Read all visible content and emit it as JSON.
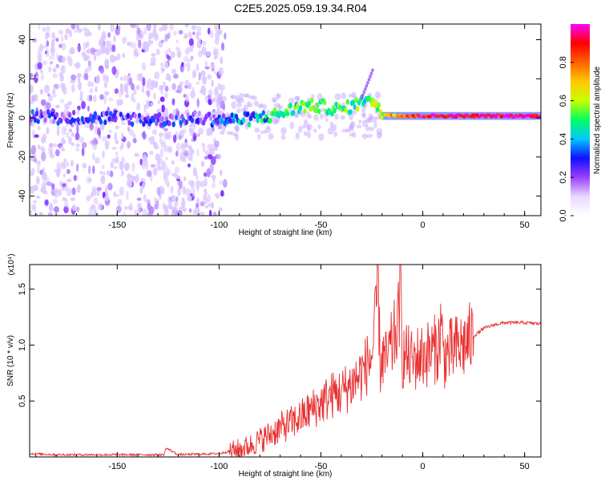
{
  "title": "C2E5.2025.059.19.34.R04",
  "colors": {
    "line": "#e83030",
    "ridge_low": "#6a00ff",
    "ridge_high": "#ff2060",
    "axis": "#000000"
  },
  "chart_data": [
    {
      "type": "heatmap",
      "title": "C2E5.2025.059.19.34.R04",
      "xlabel": "Height of straight line (km)",
      "ylabel": "Frequency (Hz)",
      "xlim": [
        -193,
        58
      ],
      "ylim": [
        -50,
        48
      ],
      "xticks": [
        -150,
        -100,
        -50,
        0,
        50
      ],
      "xtick_labels": [
        "-150",
        "-100",
        "-50",
        "0",
        "50"
      ],
      "yticks": [
        -40,
        -20,
        0,
        20,
        40
      ],
      "ytick_labels": [
        "-40",
        "-20",
        "0",
        "20",
        "40"
      ],
      "colorbar": {
        "label": "Normalized spectral amplitude",
        "range": [
          0,
          1
        ],
        "ticks": [
          0.0,
          0.2,
          0.4,
          0.6,
          0.8
        ],
        "tick_labels": [
          "0.0",
          "0.2",
          "0.4",
          "0.6",
          "0.8"
        ],
        "colormap": [
          "#ffffff",
          "#e8d8ff",
          "#9a40ff",
          "#1010ff",
          "#00c8ff",
          "#00ff60",
          "#c8ff00",
          "#ffc800",
          "#ff6000",
          "#ff0000",
          "#ff00ff"
        ]
      },
      "ridge": {
        "x": [
          -193,
          -170,
          -150,
          -130,
          -110,
          -100,
          -90,
          -80,
          -70,
          -60,
          -50,
          -40,
          -30,
          -27,
          -20,
          -10,
          0,
          10,
          20,
          30,
          40,
          50,
          58
        ],
        "freq": [
          1,
          0,
          0,
          -1,
          0,
          -1,
          -1,
          0,
          2,
          6,
          6,
          4,
          8,
          12,
          2,
          1,
          1,
          1,
          1,
          1,
          1,
          1,
          1
        ],
        "amplitude": [
          0.25,
          0.22,
          0.22,
          0.22,
          0.25,
          0.3,
          0.35,
          0.4,
          0.45,
          0.5,
          0.5,
          0.5,
          0.5,
          0.5,
          0.6,
          0.85,
          0.9,
          0.95,
          0.95,
          0.95,
          0.95,
          0.95,
          0.95
        ]
      },
      "noise_region": [
        -193,
        -97
      ]
    },
    {
      "type": "line",
      "xlabel": "Height of straight line (km)",
      "ylabel": "SNR (10 * v/v)",
      "yscale_label": "(x10⁴)",
      "xlim": [
        -193,
        58
      ],
      "ylim": [
        0,
        1.72
      ],
      "xticks": [
        -150,
        -100,
        -50,
        0,
        50
      ],
      "xtick_labels": [
        "-150",
        "-100",
        "-50",
        "0",
        "50"
      ],
      "yticks": [
        0.5,
        1.0,
        1.5
      ],
      "ytick_labels": [
        "0.5",
        "1.0",
        "1.5"
      ],
      "series": [
        {
          "name": "SNR",
          "x": [
            -193,
            -180,
            -160,
            -140,
            -127,
            -126,
            -120,
            -100,
            -95,
            -90,
            -85,
            -80,
            -75,
            -70,
            -65,
            -60,
            -55,
            -50,
            -45,
            -40,
            -35,
            -30,
            -25,
            -23,
            -22,
            -21,
            -20,
            -18,
            -15,
            -12,
            -11,
            -10,
            -8,
            -5,
            -2,
            0,
            5,
            8,
            9,
            10,
            15,
            20,
            25,
            30,
            35,
            40,
            45,
            50,
            58
          ],
          "values": [
            0.03,
            0.02,
            0.02,
            0.02,
            0.02,
            0.08,
            0.02,
            0.03,
            0.05,
            0.07,
            0.1,
            0.15,
            0.2,
            0.26,
            0.3,
            0.35,
            0.42,
            0.48,
            0.55,
            0.58,
            0.65,
            0.75,
            0.9,
            1.2,
            1.72,
            0.8,
            0.9,
            0.85,
            1.0,
            1.2,
            1.58,
            0.9,
            0.9,
            0.85,
            0.9,
            0.9,
            0.95,
            1.0,
            1.25,
            0.9,
            0.95,
            1.0,
            1.08,
            1.15,
            1.18,
            1.2,
            1.2,
            1.2,
            1.19
          ]
        }
      ]
    }
  ]
}
